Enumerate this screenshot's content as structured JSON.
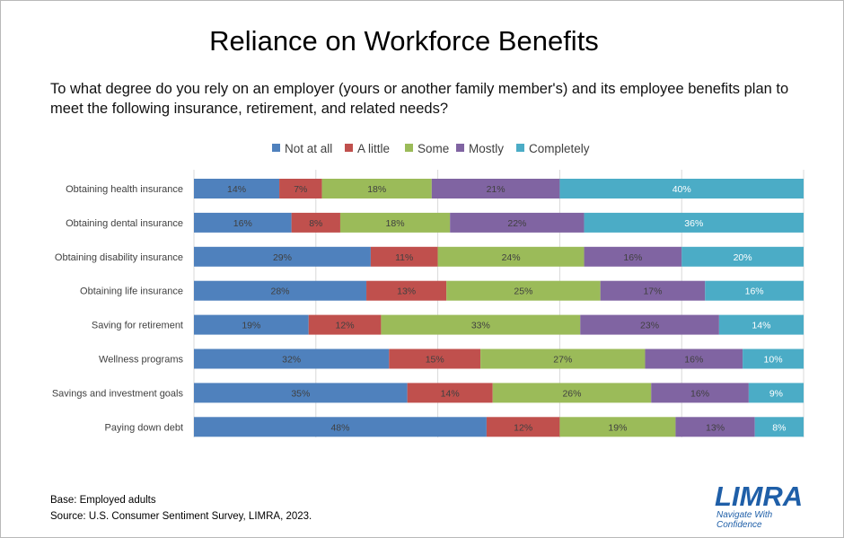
{
  "title": "Reliance on Workforce Benefits",
  "subtitle": "To what degree do you rely on an employer (yours or another family member's) and its employee benefits plan to meet the following insurance, retirement, and related needs?",
  "footnote": {
    "base": "Base: Employed adults",
    "source": "Source: U.S. Consumer Sentiment Survey, LIMRA, 2023."
  },
  "logo": {
    "wordmark": "LIMRA",
    "tagline_1": "Navigate With",
    "tagline_2": "Confidence"
  },
  "chart_data": {
    "type": "bar",
    "orientation": "horizontal",
    "stacked": "100%",
    "categories": [
      "Obtaining health insurance",
      "Obtaining dental insurance",
      "Obtaining disability insurance",
      "Obtaining life insurance",
      "Saving for retirement",
      "Wellness programs",
      "Savings and investment goals",
      "Paying down debt"
    ],
    "series": [
      {
        "name": "Not at all",
        "color": "#4f81bd",
        "values": [
          14,
          16,
          29,
          28,
          19,
          32,
          35,
          48
        ]
      },
      {
        "name": "A little",
        "color": "#c0504d",
        "values": [
          7,
          8,
          11,
          13,
          12,
          15,
          14,
          12
        ]
      },
      {
        "name": "Some",
        "color": "#9bbb59",
        "values": [
          18,
          18,
          24,
          25,
          33,
          27,
          26,
          19
        ]
      },
      {
        "name": "Mostly",
        "color": "#8064a2",
        "values": [
          21,
          22,
          16,
          17,
          23,
          16,
          16,
          13
        ]
      },
      {
        "name": "Completely",
        "color": "#4bacc6",
        "values": [
          40,
          36,
          20,
          16,
          14,
          10,
          9,
          8
        ]
      }
    ],
    "value_suffix": "%",
    "legend_position": "top",
    "grid": true
  }
}
